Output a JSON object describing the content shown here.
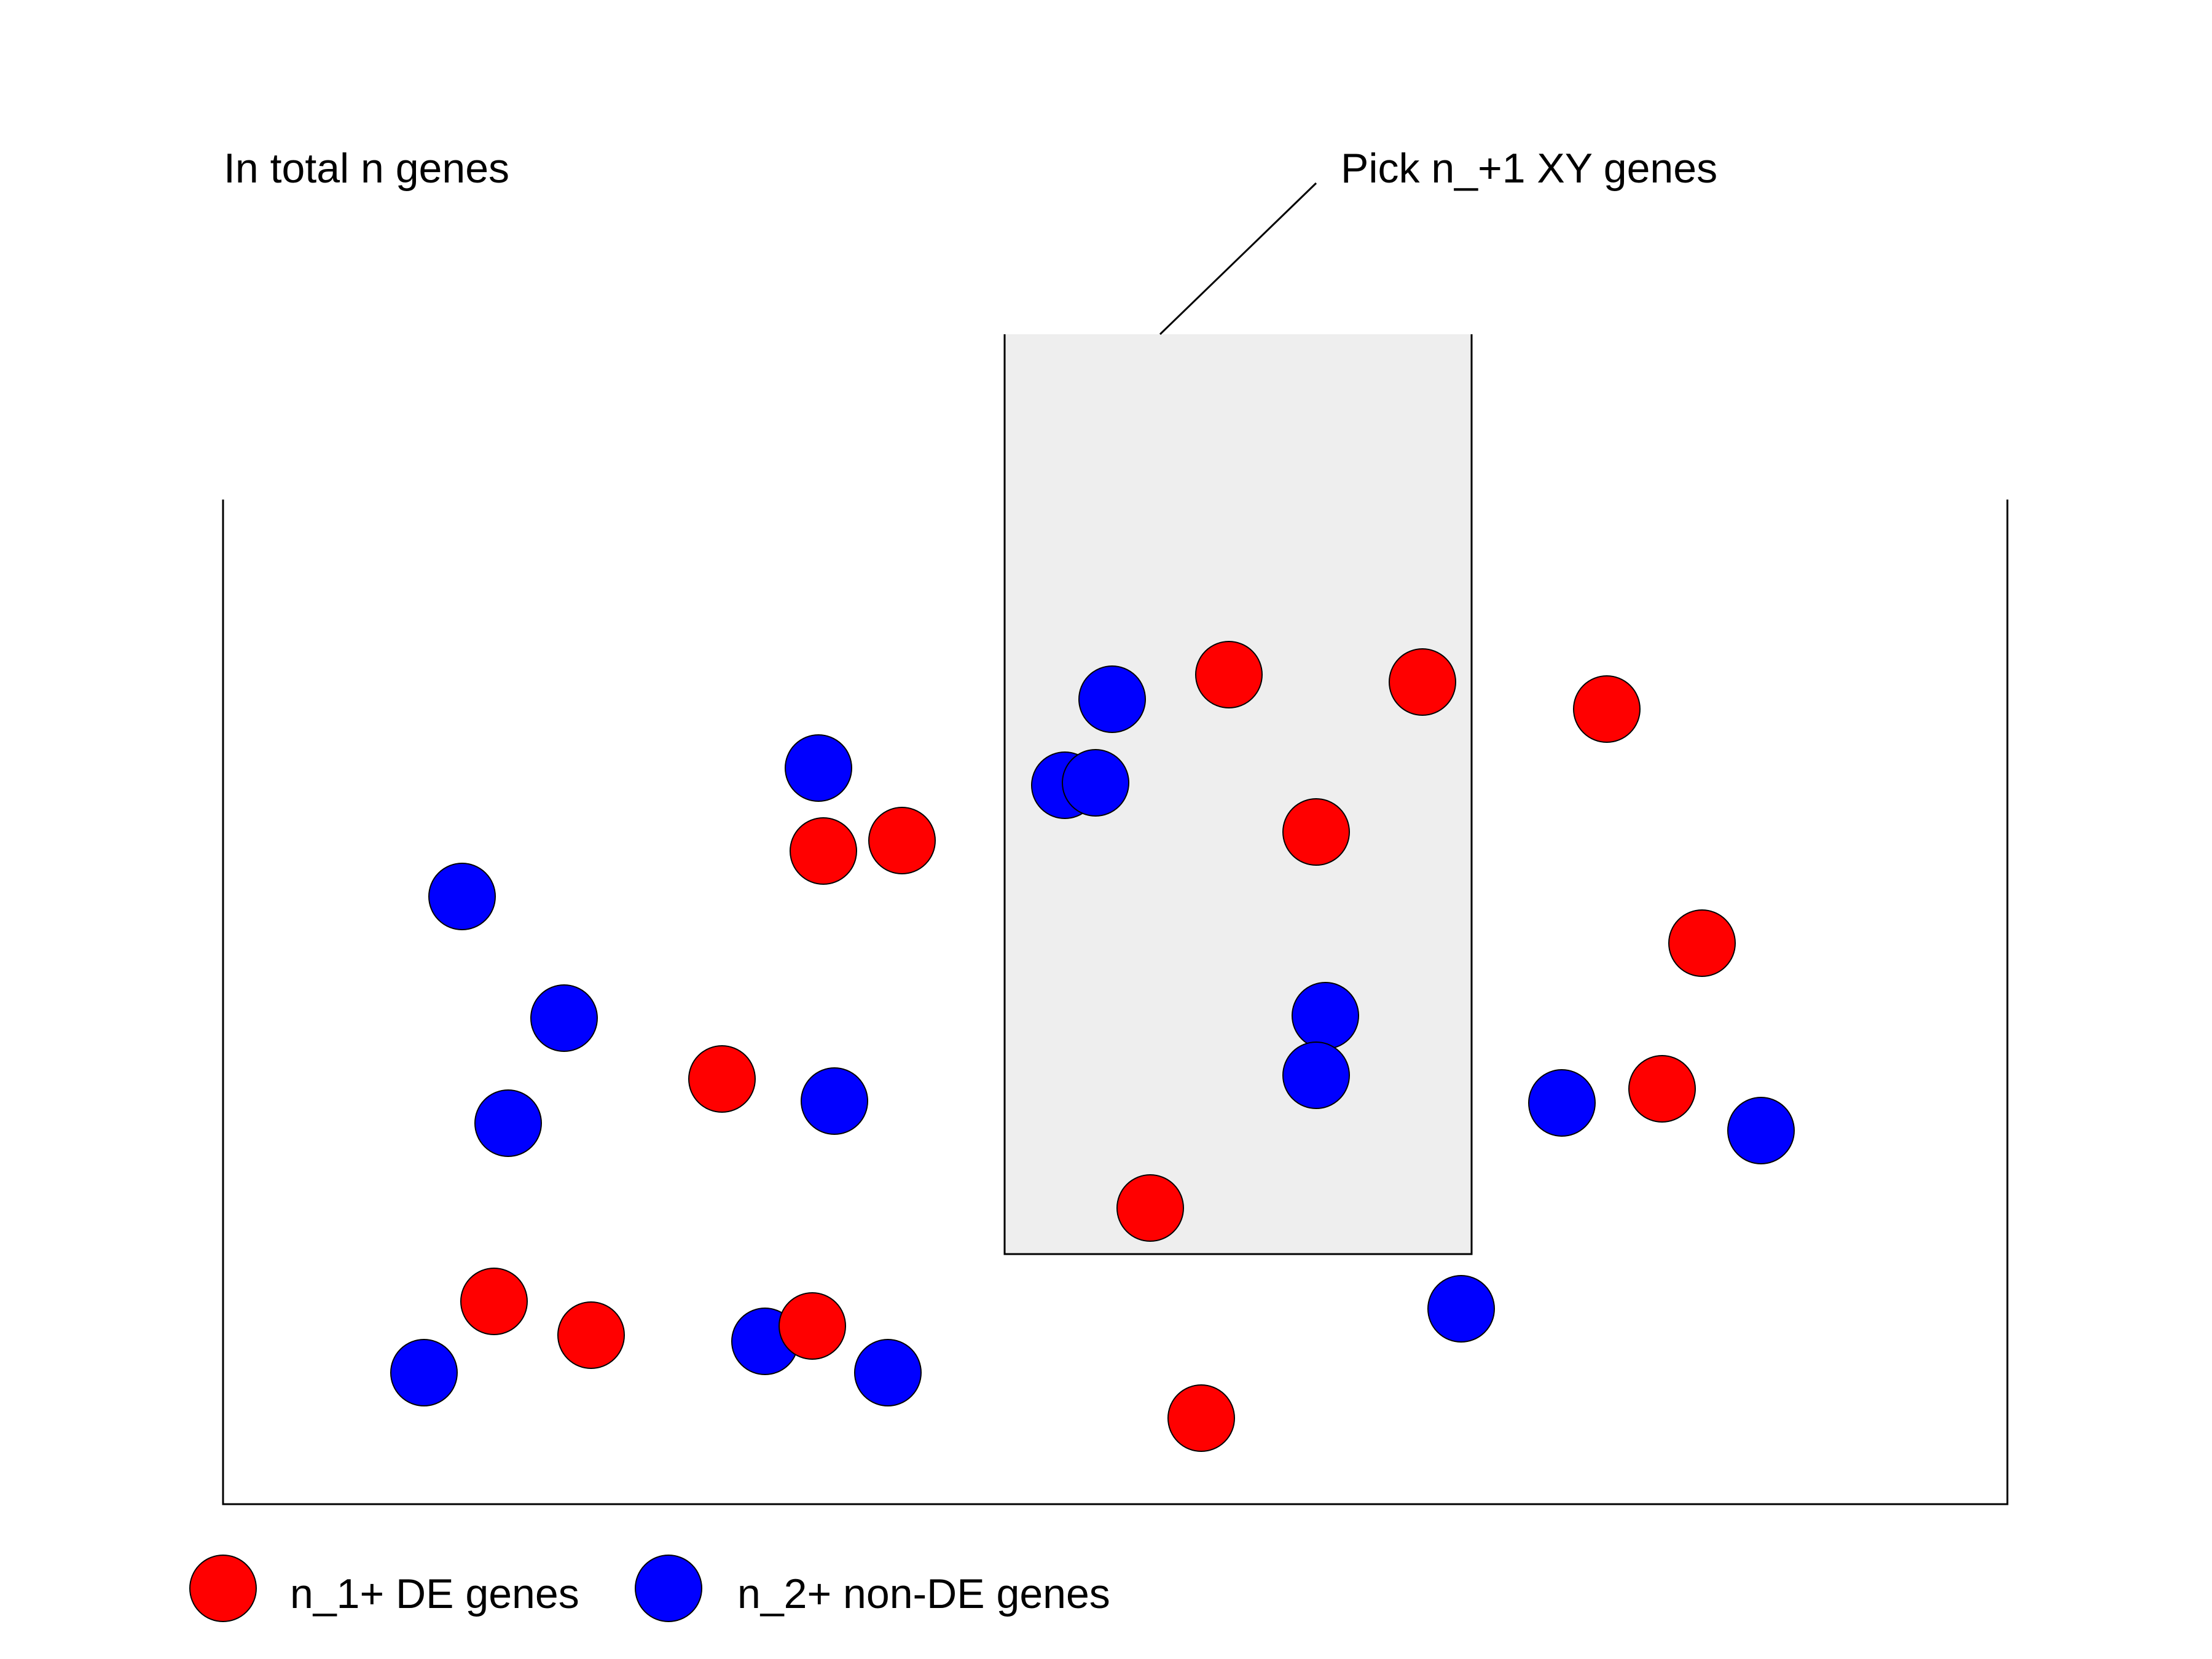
{
  "labels": {
    "total": "In total n genes",
    "pick": "Pick n_+1 XY genes"
  },
  "legend": {
    "de": {
      "label": "n_1+ DE genes",
      "color": "#ff0000"
    },
    "nonde": {
      "label": "n_2+ non-DE genes",
      "color": "#0000ff"
    }
  },
  "colors": {
    "selection_fill": "#eeeeee",
    "stroke": "#000000"
  }
}
